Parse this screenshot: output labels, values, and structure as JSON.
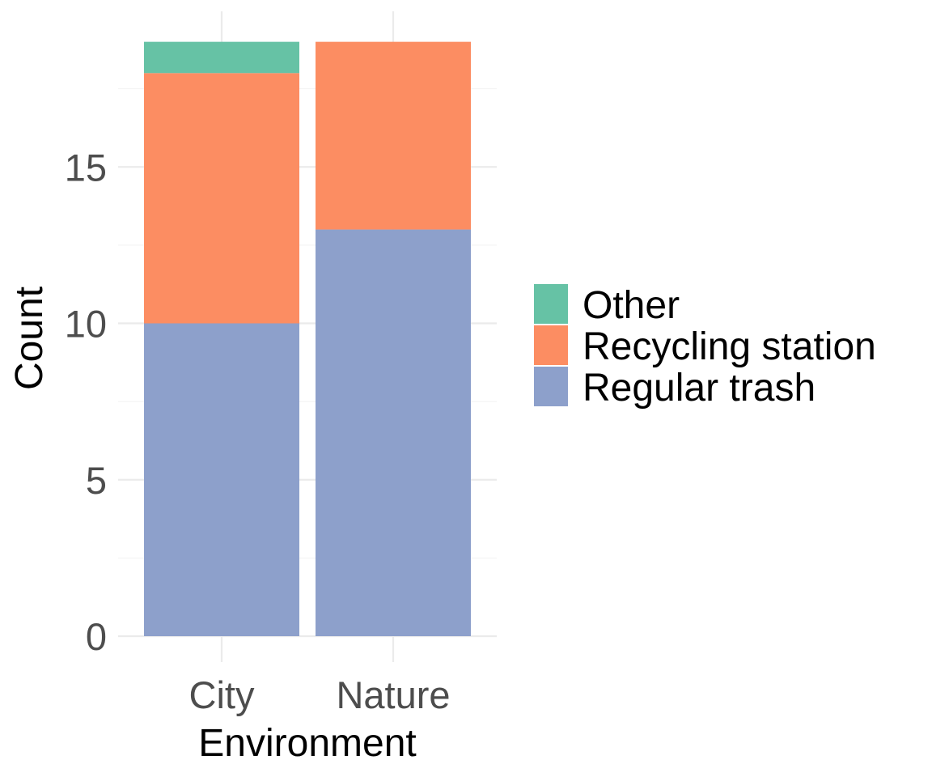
{
  "chart_data": {
    "type": "bar",
    "stacked": true,
    "title": "",
    "xlabel": "Environment",
    "ylabel": "Count",
    "categories": [
      "City",
      "Nature"
    ],
    "series": [
      {
        "name": "Regular trash",
        "values": [
          10,
          13
        ],
        "color": "#8DA0CB"
      },
      {
        "name": "Recycling station",
        "values": [
          8,
          6
        ],
        "color": "#FC8D62"
      },
      {
        "name": "Other",
        "values": [
          1,
          0
        ],
        "color": "#66C2A5"
      }
    ],
    "ylim": [
      0,
      19
    ],
    "yticks": [
      0,
      5,
      10,
      15
    ],
    "legend_order": [
      "Other",
      "Recycling station",
      "Regular trash"
    ],
    "legend_position": "right",
    "grid": true
  }
}
